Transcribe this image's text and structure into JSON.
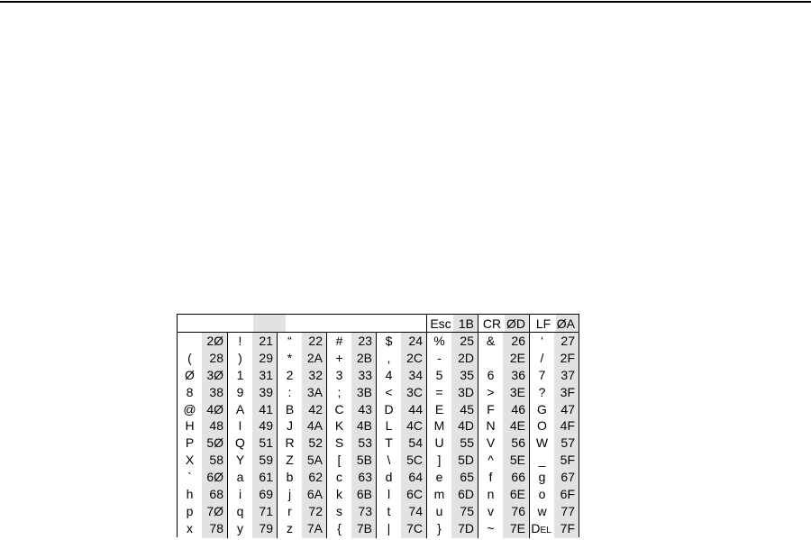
{
  "header": [
    {
      "char": "",
      "code": ""
    },
    {
      "char": "",
      "code": ""
    },
    {
      "char": "",
      "code": ""
    },
    {
      "char": "",
      "code": ""
    },
    {
      "char": "",
      "code": ""
    },
    {
      "char": "Esc",
      "code": "1B"
    },
    {
      "char": "CR",
      "code": "ØD"
    },
    {
      "char": "LF",
      "code": "ØA"
    }
  ],
  "columns": [
    {
      "chars": [
        "",
        "(",
        "Ø",
        "8",
        "@",
        "H",
        "P",
        "X",
        "`",
        "h",
        "p",
        "x"
      ],
      "codes": [
        "2Ø",
        "28",
        "3Ø",
        "38",
        "4Ø",
        "48",
        "5Ø",
        "58",
        "6Ø",
        "68",
        "7Ø",
        "78"
      ]
    },
    {
      "chars": [
        "!",
        ")",
        "1",
        "9",
        "A",
        "I",
        "Q",
        "Y",
        "a",
        "i",
        "q",
        "y"
      ],
      "codes": [
        "21",
        "29",
        "31",
        "39",
        "41",
        "49",
        "51",
        "59",
        "61",
        "69",
        "71",
        "79"
      ]
    },
    {
      "chars": [
        "“",
        "*",
        "2",
        ":",
        "B",
        "J",
        "R",
        "Z",
        "b",
        "j",
        "r",
        "z"
      ],
      "codes": [
        "22",
        "2A",
        "32",
        "3A",
        "42",
        "4A",
        "52",
        "5A",
        "62",
        "6A",
        "72",
        "7A"
      ]
    },
    {
      "chars": [
        "#",
        "+",
        "3",
        ";",
        "C",
        "K",
        "S",
        "[",
        "c",
        "k",
        "s",
        "{"
      ],
      "codes": [
        "23",
        "2B",
        "33",
        "3B",
        "43",
        "4B",
        "53",
        "5B",
        "63",
        "6B",
        "73",
        "7B"
      ]
    },
    {
      "chars": [
        "$",
        ",",
        "4",
        "<",
        "D",
        "L",
        "T",
        "\\",
        "d",
        "l",
        "t",
        "|"
      ],
      "codes": [
        "24",
        "2C",
        "34",
        "3C",
        "44",
        "4C",
        "54",
        "5C",
        "64",
        "6C",
        "74",
        "7C"
      ]
    },
    {
      "chars": [
        "%",
        "-",
        "5",
        "=",
        "E",
        "M",
        "U",
        "]",
        "e",
        "m",
        "u",
        "}"
      ],
      "codes": [
        "25",
        "2D",
        "35",
        "3D",
        "45",
        "4D",
        "55",
        "5D",
        "65",
        "6D",
        "75",
        "7D"
      ]
    },
    {
      "chars": [
        "&",
        "",
        "6",
        ">",
        "F",
        "N",
        "V",
        "^",
        "f",
        "n",
        "v",
        "~"
      ],
      "codes": [
        "26",
        "2E",
        "36",
        "3E",
        "46",
        "4E",
        "56",
        "5E",
        "66",
        "6E",
        "76",
        "7E"
      ]
    },
    {
      "chars": [
        "‘",
        "/",
        "7",
        "?",
        "G",
        "O",
        "W",
        "_",
        "g",
        "o",
        "w",
        "DEL"
      ],
      "codes": [
        "27",
        "2F",
        "37",
        "3F",
        "47",
        "4F",
        "57",
        "5F",
        "67",
        "6F",
        "77",
        "7F"
      ]
    }
  ]
}
